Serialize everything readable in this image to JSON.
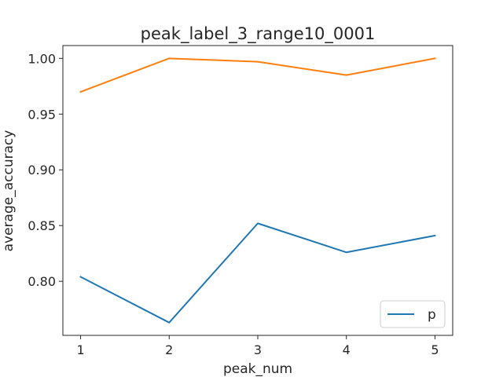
{
  "chart_data": {
    "type": "line",
    "title": "peak_label_3_range10_0001",
    "xlabel": "peak_num",
    "ylabel": "average_accuracy",
    "x": [
      1,
      2,
      3,
      4,
      5
    ],
    "xticks": [
      "1",
      "2",
      "3",
      "4",
      "5"
    ],
    "yticks": [
      "0.80",
      "0.85",
      "0.90",
      "0.95",
      "1.00"
    ],
    "ylim": [
      0.7515,
      1.0115
    ],
    "series": [
      {
        "name": "p",
        "color": "#1f77b4",
        "values": [
          0.804,
          0.763,
          0.852,
          0.826,
          0.841
        ]
      },
      {
        "color": "#ff7f0e",
        "values": [
          0.97,
          1.0,
          0.997,
          0.985,
          1.0
        ]
      }
    ],
    "legend": {
      "placement": "lower-right",
      "entries": [
        "p"
      ]
    },
    "grid": false
  }
}
